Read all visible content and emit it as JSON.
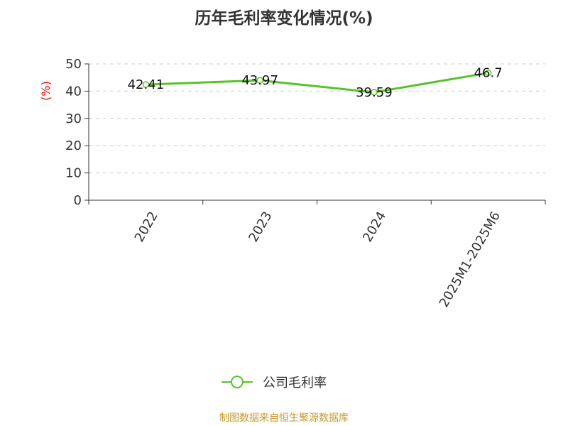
{
  "chart_data": {
    "type": "line",
    "title": "历年毛利率变化情况(%)",
    "ylabel": "(%)",
    "xlabel": "",
    "categories": [
      "2022",
      "2023",
      "2024",
      "2025M1-2025M6"
    ],
    "series": [
      {
        "name": "公司毛利率",
        "values": [
          42.41,
          43.97,
          39.59,
          46.7
        ],
        "labels": [
          "42.41",
          "43.97",
          "39.59",
          "46.7"
        ],
        "color": "#5ac12a"
      }
    ],
    "ylim": [
      0,
      50
    ],
    "yticks": [
      0,
      10,
      20,
      30,
      40,
      50
    ],
    "grid": true,
    "legend_position": "bottom",
    "colors": {
      "axis": "#333333",
      "grid": "#cccccc",
      "ylabel": "#ff0000"
    }
  },
  "footer": {
    "source": "制图数据来自恒生聚源数据库"
  }
}
